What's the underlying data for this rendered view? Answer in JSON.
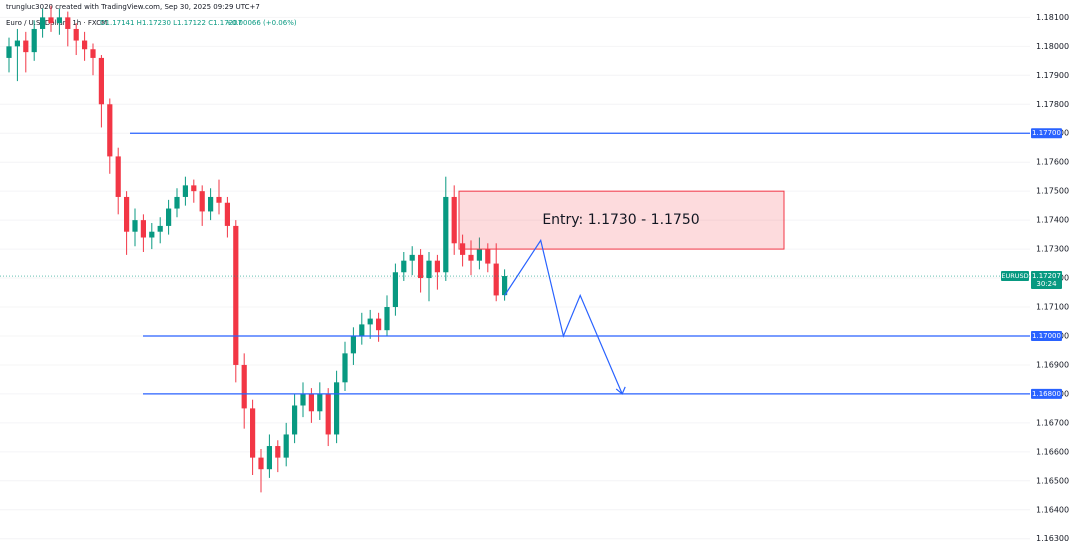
{
  "header": {
    "credit": "trungluc3020 created with TradingView.com, Sep 30, 2025 09:29 UTC+7",
    "symbol": "Euro / U.S. Dollar · 1h · FXCM",
    "ohlc": "O1.17141 H1.17230 L1.17122 C1.17207",
    "change": "+0.00066 (+0.06%)"
  },
  "chart_data": {
    "type": "candlestick",
    "open": [
      1.1796,
      1.18,
      1.1802,
      1.1798,
      1.1806,
      1.181,
      1.1808,
      1.181,
      1.1806,
      1.1802,
      1.1799,
      1.1796,
      1.178,
      1.1762,
      1.1748,
      1.1736,
      1.174,
      1.1734,
      1.1736,
      1.1738,
      1.1744,
      1.1748,
      1.1752,
      1.175,
      1.1743,
      1.1748,
      1.1746,
      1.1738,
      1.169,
      1.1675,
      1.1658,
      1.1654,
      1.1662,
      1.1658,
      1.1666,
      1.1676,
      1.168,
      1.1674,
      1.168,
      1.1666,
      1.1684,
      1.1694,
      1.17,
      1.1704,
      1.1706,
      1.1702,
      1.171,
      1.1722,
      1.1726,
      1.1728,
      1.172,
      1.1726,
      1.1722,
      1.1748,
      1.1732,
      1.1728,
      1.1726,
      1.173,
      1.1725,
      1.17141
    ],
    "high": [
      1.1803,
      1.1806,
      1.1805,
      1.1809,
      1.1813,
      1.1814,
      1.1813,
      1.1812,
      1.1808,
      1.1805,
      1.1801,
      1.1797,
      1.1782,
      1.1765,
      1.175,
      1.1744,
      1.1742,
      1.1739,
      1.1741,
      1.1747,
      1.1751,
      1.1755,
      1.1754,
      1.1752,
      1.1751,
      1.1754,
      1.1748,
      1.174,
      1.1694,
      1.1678,
      1.1661,
      1.1666,
      1.1664,
      1.167,
      1.168,
      1.1684,
      1.1682,
      1.1684,
      1.1682,
      1.1688,
      1.1698,
      1.1703,
      1.1708,
      1.1709,
      1.1708,
      1.1714,
      1.1725,
      1.1729,
      1.1731,
      1.173,
      1.1729,
      1.1728,
      1.1755,
      1.1752,
      1.1735,
      1.1733,
      1.1734,
      1.1732,
      1.1732,
      1.1723
    ],
    "low": [
      1.1791,
      1.1788,
      1.1791,
      1.1795,
      1.1803,
      1.1805,
      1.1804,
      1.18,
      1.1797,
      1.1795,
      1.179,
      1.1772,
      1.1756,
      1.1742,
      1.1728,
      1.1731,
      1.1729,
      1.173,
      1.1732,
      1.1735,
      1.1741,
      1.1745,
      1.1746,
      1.1738,
      1.174,
      1.1742,
      1.1734,
      1.1684,
      1.1668,
      1.1652,
      1.1646,
      1.1651,
      1.1653,
      1.1655,
      1.1663,
      1.1672,
      1.167,
      1.1671,
      1.1662,
      1.1663,
      1.1681,
      1.169,
      1.1697,
      1.1699,
      1.1698,
      1.17,
      1.1707,
      1.1719,
      1.1721,
      1.1715,
      1.1712,
      1.1716,
      1.1719,
      1.1728,
      1.1724,
      1.1721,
      1.1723,
      1.1722,
      1.1712,
      1.17122
    ],
    "close": [
      1.18,
      1.1802,
      1.1798,
      1.1806,
      1.181,
      1.1808,
      1.181,
      1.1806,
      1.1802,
      1.1799,
      1.1796,
      1.178,
      1.1762,
      1.1748,
      1.1736,
      1.174,
      1.1734,
      1.1736,
      1.1738,
      1.1744,
      1.1748,
      1.1752,
      1.175,
      1.1743,
      1.1748,
      1.1746,
      1.1738,
      1.169,
      1.1675,
      1.1658,
      1.1654,
      1.1662,
      1.1658,
      1.1666,
      1.1676,
      1.168,
      1.1674,
      1.168,
      1.1666,
      1.1684,
      1.1694,
      1.17,
      1.1704,
      1.1706,
      1.1702,
      1.171,
      1.1722,
      1.1726,
      1.1728,
      1.172,
      1.1726,
      1.1722,
      1.1748,
      1.1732,
      1.1728,
      1.1726,
      1.173,
      1.1725,
      1.1714,
      1.17207
    ],
    "up_color": "#089981",
    "down_color": "#f23645",
    "ylim": [
      1.1623,
      1.1816
    ],
    "yticks": [
      {
        "value": 1.181,
        "label": "1.18100"
      },
      {
        "value": 1.18,
        "label": "1.18000"
      },
      {
        "value": 1.179,
        "label": "1.17900"
      },
      {
        "value": 1.178,
        "label": "1.17800"
      },
      {
        "value": 1.177,
        "label": "1.17700"
      },
      {
        "value": 1.176,
        "label": "1.17600"
      },
      {
        "value": 1.175,
        "label": "1.17500"
      },
      {
        "value": 1.174,
        "label": "1.17400"
      },
      {
        "value": 1.173,
        "label": "1.17300"
      },
      {
        "value": 1.172,
        "label": "1.17200"
      },
      {
        "value": 1.171,
        "label": "1.17100"
      },
      {
        "value": 1.17,
        "label": "1.17000"
      },
      {
        "value": 1.169,
        "label": "1.16900"
      },
      {
        "value": 1.168,
        "label": "1.16800"
      },
      {
        "value": 1.167,
        "label": "1.16700"
      },
      {
        "value": 1.166,
        "label": "1.16600"
      },
      {
        "value": 1.165,
        "label": "1.16500"
      },
      {
        "value": 1.164,
        "label": "1.16400"
      },
      {
        "value": 1.163,
        "label": "1.16300"
      }
    ],
    "grid": true,
    "levels": [
      {
        "value": 1.177,
        "label": "1.17700"
      },
      {
        "value": 1.17,
        "label": "1.17000"
      },
      {
        "value": 1.168,
        "label": "1.16800"
      }
    ],
    "level_color": "#2962ff",
    "zone": {
      "label": "Entry: 1.1730 - 1.1750",
      "low": 1.173,
      "high": 1.175
    },
    "projection": {
      "x": [
        59,
        63.3,
        66,
        68,
        73
      ],
      "values": [
        1.1714,
        1.1733,
        1.17,
        1.1714,
        1.168
      ]
    },
    "last": {
      "symbol": "EURUSD",
      "value": 1.17207,
      "label": "1.17207",
      "countdown": "30:24"
    }
  }
}
